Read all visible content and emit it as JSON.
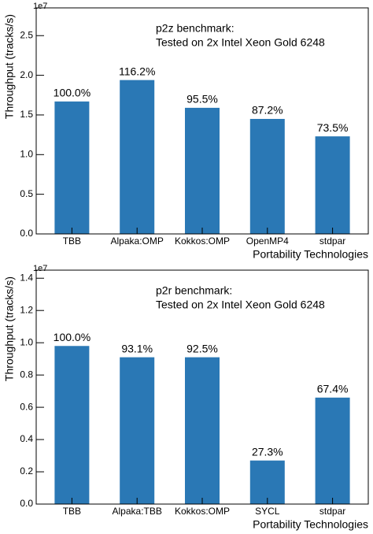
{
  "chart_data": [
    {
      "type": "bar",
      "ylabel": "Throughput (tracks/s)",
      "xlabel": "Portability Technologies",
      "y_offset_label": "1e7",
      "annotation": [
        "p2z benchmark:",
        "Tested on 2x Intel Xeon Gold 6248"
      ],
      "categories": [
        "TBB",
        "Alpaka:OMP",
        "Kokkos:OMP",
        "OpenMP4",
        "stdpar"
      ],
      "values": [
        1.67,
        1.94,
        1.59,
        1.45,
        1.23
      ],
      "bar_labels": [
        "100.0%",
        "116.2%",
        "95.5%",
        "87.2%",
        "73.5%"
      ],
      "color": "#2a78b5",
      "ylim": [
        0,
        2.85
      ],
      "yticks": [
        {
          "value": 0,
          "label": "0.0"
        },
        {
          "value": 0.5,
          "label": "0.5"
        },
        {
          "value": 1,
          "label": "1.0"
        },
        {
          "value": 1.5,
          "label": "1.5"
        },
        {
          "value": 2,
          "label": "2.0"
        },
        {
          "value": 2.5,
          "label": "2.5"
        }
      ]
    },
    {
      "type": "bar",
      "ylabel": "Throughput (tracks/s)",
      "xlabel": "Portability Technologies",
      "y_offset_label": "1e7",
      "annotation": [
        "p2r benchmark:",
        "Tested on 2x Intel Xeon Gold 6248"
      ],
      "categories": [
        "TBB",
        "Alpaka:TBB",
        "Kokkos:OMP",
        "SYCL",
        "stdpar"
      ],
      "values": [
        0.98,
        0.91,
        0.91,
        0.27,
        0.66
      ],
      "bar_labels": [
        "100.0%",
        "93.1%",
        "92.5%",
        "27.3%",
        "67.4%"
      ],
      "color": "#2a78b5",
      "ylim": [
        0,
        1.45
      ],
      "yticks": [
        {
          "value": 0,
          "label": "0.0"
        },
        {
          "value": 0.2,
          "label": "0.2"
        },
        {
          "value": 0.4,
          "label": "0.4"
        },
        {
          "value": 0.6,
          "label": "0.6"
        },
        {
          "value": 0.8,
          "label": "0.8"
        },
        {
          "value": 1,
          "label": "1.0"
        },
        {
          "value": 1.2,
          "label": "1.2"
        },
        {
          "value": 1.4,
          "label": "1.4"
        }
      ]
    }
  ]
}
